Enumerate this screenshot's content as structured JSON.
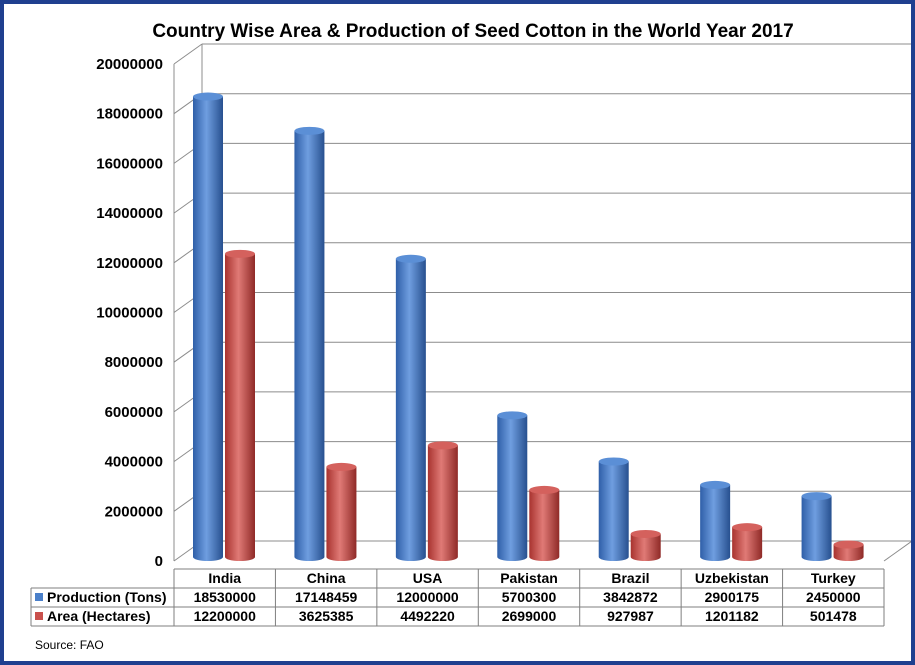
{
  "chart_data": {
    "type": "bar",
    "title": "Country Wise Area & Production of Seed Cotton in the World Year 2017",
    "categories": [
      "India",
      "China",
      "USA",
      "Pakistan",
      "Brazil",
      "Uzbekistan",
      "Turkey"
    ],
    "series": [
      {
        "name": "Production (Tons)",
        "color": "#4a7fc9",
        "values": [
          18530000,
          17148459,
          12000000,
          5700300,
          3842872,
          2900175,
          2450000
        ],
        "labels": [
          "18530000",
          "17148459",
          "12000000",
          "5700300",
          "3842872",
          "2900175",
          "2450000"
        ]
      },
      {
        "name": "Area (Hectares)",
        "color": "#c9504c",
        "values": [
          12200000,
          3625385,
          4492220,
          2699000,
          927987,
          1201182,
          501478
        ],
        "labels": [
          "12200000",
          "3625385",
          "4492220",
          "2699000",
          "927987",
          "1201182",
          "501478"
        ]
      }
    ],
    "yticks": [
      "0",
      "2000000",
      "4000000",
      "6000000",
      "8000000",
      "10000000",
      "12000000",
      "14000000",
      "16000000",
      "18000000",
      "20000000"
    ],
    "ylim": [
      0,
      20000000
    ],
    "grid": true,
    "legend": "data-table",
    "source": "Source: FAO"
  }
}
